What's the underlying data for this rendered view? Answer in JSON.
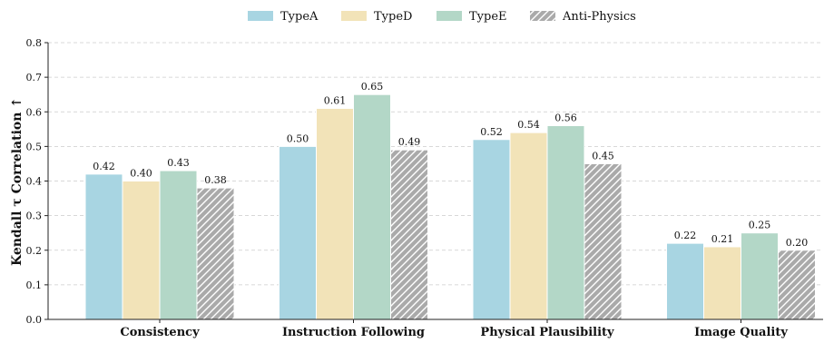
{
  "chart_data": {
    "type": "bar",
    "categories": [
      "Consistency",
      "Instruction Following",
      "Physical Plausibility",
      "Image Quality"
    ],
    "series": [
      {
        "name": "TypeA",
        "values": [
          0.42,
          0.5,
          0.52,
          0.22
        ],
        "color": "#a8d5e2",
        "pattern": "none"
      },
      {
        "name": "TypeD",
        "values": [
          0.4,
          0.61,
          0.54,
          0.21
        ],
        "color": "#f2e3b8",
        "pattern": "none"
      },
      {
        "name": "TypeE",
        "values": [
          0.43,
          0.65,
          0.56,
          0.25
        ],
        "color": "#b3d7c7",
        "pattern": "none"
      },
      {
        "name": "Anti-Physics",
        "values": [
          0.38,
          0.49,
          0.45,
          0.2
        ],
        "color": "#aaaaaa",
        "pattern": "hatch"
      }
    ],
    "value_labels": [
      [
        "0.42",
        "0.50",
        "0.52",
        "0.22"
      ],
      [
        "0.40",
        "0.61",
        "0.54",
        "0.21"
      ],
      [
        "0.43",
        "0.65",
        "0.56",
        "0.25"
      ],
      [
        "0.38",
        "0.49",
        "0.45",
        "0.20"
      ]
    ],
    "title": "",
    "xlabel": "",
    "ylabel": "Kendall τ Correlation ↑",
    "ylim": [
      0,
      0.8
    ],
    "yticks": [
      "0.0",
      "0.1",
      "0.2",
      "0.3",
      "0.4",
      "0.5",
      "0.6",
      "0.7",
      "0.8"
    ],
    "grid": "horizontal dashed",
    "legend_position": "top-center"
  }
}
